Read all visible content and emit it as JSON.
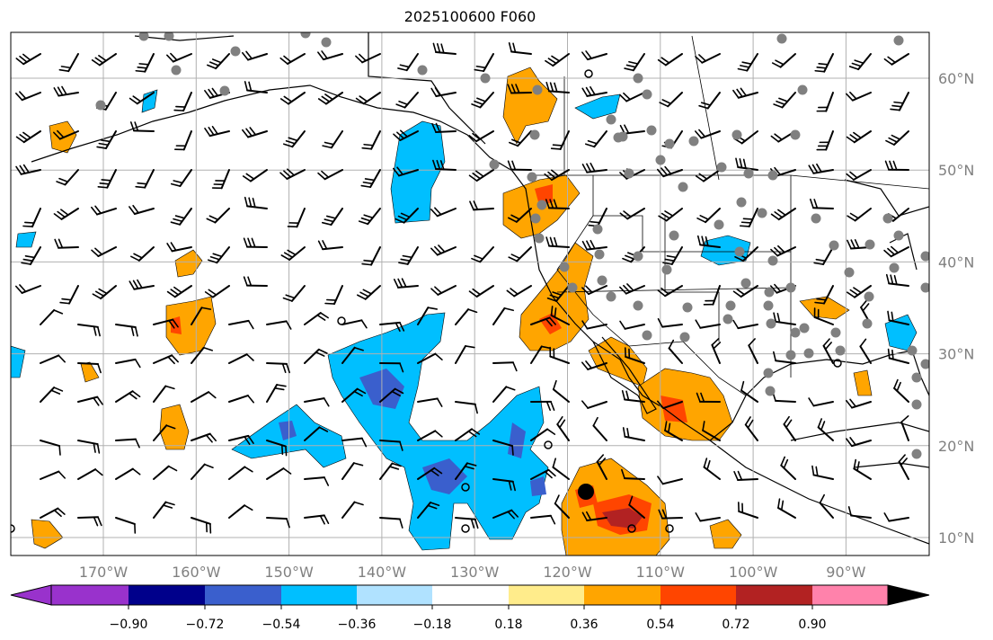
{
  "title": "2025100600 F060",
  "lat_labels": [
    "60°N",
    "50°N",
    "40°N",
    "30°N",
    "20°N",
    "10°N"
  ],
  "lon_labels": [
    "170°W",
    "160°W",
    "150°W",
    "140°W",
    "130°W",
    "120°W",
    "110°W",
    "100°W",
    "90°W"
  ],
  "colorbar": {
    "ticks": [
      "−0.90",
      "−0.72",
      "−0.54",
      "−0.36",
      "−0.18",
      "0.18",
      "0.36",
      "0.54",
      "0.72",
      "0.90"
    ],
    "colors": [
      "#9932cc",
      "#00008b",
      "#3a5fcd",
      "#00bfff",
      "#b0e2ff",
      "#ffffff",
      "#ffec8b",
      "#ffa500",
      "#ff4500",
      "#b22222",
      "#ff82ab"
    ],
    "extend": "both"
  },
  "overlays": {
    "wind_barbs": true,
    "stations": true,
    "coastlines": true,
    "borders": true
  }
}
